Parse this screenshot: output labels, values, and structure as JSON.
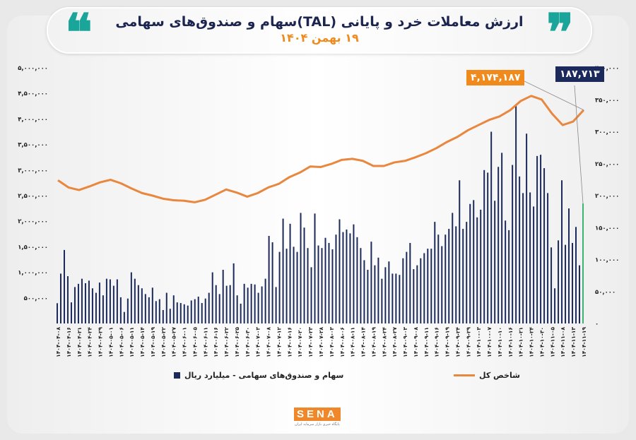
{
  "header": {
    "title": "ارزش معاملات خرد و پایانی (TAL)سهام و صندوق‌های سهامی",
    "subtitle": "۱۹ بهمن ۱۴۰۴",
    "quote_open": "❝",
    "quote_close": "❞"
  },
  "logo": {
    "word": "SENA",
    "tagline": "پایگاه خبری بازار سرمایه ایران"
  },
  "colors": {
    "bars": "#1b2a5a",
    "last_bar": "#3cb371",
    "index_line": "#e8873d",
    "accent": "#1aa59a",
    "title": "#1b2550",
    "subtitle": "#f08a1c"
  },
  "callouts": {
    "index_last": "۴,۱۷۴,۱۸۷",
    "bar_last": "۱۸۷,۷۱۳"
  },
  "chart_data": {
    "type": "bar+line",
    "title": "ارزش معاملات خرد و پایانی (TAL)سهام و صندوق‌های سهامی",
    "legend": [
      {
        "name": "سهام و صندوق‌های سهامی - میلیارد ریال",
        "type": "bar",
        "axis": "right"
      },
      {
        "name": "شاخص کل",
        "type": "line",
        "axis": "left"
      }
    ],
    "legend_placement": "bottom",
    "grid": false,
    "left_axis": {
      "range": [
        0,
        5000000
      ],
      "ticks": [
        "۵۰۰,۰۰۰",
        "۱,۰۰۰,۰۰۰",
        "۱,۵۰۰,۰۰۰",
        "۲,۰۰۰,۰۰۰",
        "۲,۵۰۰,۰۰۰",
        "۳,۰۰۰,۰۰۰",
        "۳,۵۰۰,۰۰۰",
        "۴,۰۰۰,۰۰۰",
        "۴,۵۰۰,۰۰۰",
        "۵,۰۰۰,۰۰۰"
      ],
      "tick_values": [
        500000,
        1000000,
        1500000,
        2000000,
        2500000,
        3000000,
        3500000,
        4000000,
        4500000,
        5000000
      ]
    },
    "right_axis": {
      "range": [
        0,
        400000
      ],
      "ticks": [
        "۰",
        "۵۰,۰۰۰",
        "۱۰۰,۰۰۰",
        "۱۵۰,۰۰۰",
        "۲۰۰,۰۰۰",
        "۲۵۰,۰۰۰",
        "۳۰۰,۰۰۰",
        "۳۵۰,۰۰۰",
        "۴۰۰,۰۰۰"
      ],
      "tick_values": [
        0,
        50000,
        100000,
        150000,
        200000,
        250000,
        300000,
        350000,
        400000
      ]
    },
    "x_tick_labels": [
      "۱۴۰۴-۰۴-۰۸",
      "۱۴۰۴-۰۴-۱۶",
      "۱۴۰۴-۰۴-۲۱",
      "۱۴۰۴-۰۴-۲۴",
      "۱۴۰۴-۰۴-۲۹",
      "۱۴۰۴-۰۵-۰۱",
      "۱۴۰۴-۰۵-۰۶",
      "۱۴۰۴-۰۵-۱۱",
      "۱۴۰۴-۰۵-۱۴",
      "۱۴۰۴-۰۵-۱۹",
      "۱۴۰۴-۰۵-۲۲",
      "۱۴۰۴-۰۵-۲۷",
      "۱۴۰۴-۰۶-۰۱",
      "۱۴۰۴-۰۶-۰۵",
      "۱۴۰۴-۰۶-۱۱",
      "۱۴۰۴-۰۶-۱۶",
      "۱۴۰۴-۰۶-۲۲",
      "۱۴۰۴-۰۶-۲۵",
      "۱۴۰۴-۰۶-۳۰",
      "۱۴۰۴-۰۷-۰۳",
      "۱۴۰۴-۰۷-۰۸",
      "۱۴۰۴-۰۷-۱۲",
      "۱۴۰۴-۰۷-۱۶",
      "۱۴۰۴-۰۷-۲۰",
      "۱۴۰۴-۰۷-۲۳",
      "۱۴۰۴-۰۷-۲۸",
      "۱۴۰۴-۰۸-۰۳",
      "۱۴۰۴-۰۸-۰۶",
      "۱۴۰۴-۰۸-۱۱",
      "۱۴۰۴-۰۸-۱۴",
      "۱۴۰۴-۰۸-۱۹",
      "۱۴۰۴-۰۸-۲۴",
      "۱۴۰۴-۰۸-۲۷",
      "۱۴۰۴-۰۹-۰۳",
      "۱۴۰۴-۰۹-۰۸",
      "۱۴۰۴-۰۹-۱۱",
      "۱۴۰۴-۰۹-۱۶",
      "۱۴۰۴-۰۹-۱۹",
      "۱۴۰۴-۰۹-۲۴",
      "۱۴۰۴-۰۹-۲۹",
      "۱۴۰۴-۱۰-۰۳",
      "۱۴۰۴-۱۰-۰۷",
      "۱۴۰۴-۱۰-۱۰",
      "۱۴۰۴-۱۰-۱۶",
      "۱۴۰۴-۱۰-۲۱",
      "۱۴۰۴-۱۰-۲۴",
      "۱۴۰۴-۱۰-۳۰",
      "۱۴۰۴-۱۱-۰۵",
      "۱۴۰۴-۱۱-۰۸",
      "۱۴۰۴-۱۱-۱۳",
      "۱۴۰۴-۱۱-۱۹"
    ],
    "index_values": [
      2800000,
      2660000,
      2610000,
      2680000,
      2760000,
      2810000,
      2740000,
      2640000,
      2550000,
      2500000,
      2440000,
      2410000,
      2400000,
      2370000,
      2420000,
      2520000,
      2620000,
      2560000,
      2480000,
      2550000,
      2660000,
      2730000,
      2860000,
      2950000,
      3070000,
      3060000,
      3120000,
      3200000,
      3220000,
      3180000,
      3080000,
      3080000,
      3150000,
      3180000,
      3250000,
      3330000,
      3430000,
      3550000,
      3650000,
      3780000,
      3880000,
      3980000,
      4050000,
      4170000,
      4350000,
      4450000,
      4380000,
      4100000,
      3880000,
      3950000,
      4174187
    ],
    "bar_values": [
      31700,
      78000,
      115000,
      74000,
      33000,
      57000,
      62000,
      70000,
      63000,
      67000,
      55000,
      48000,
      64000,
      44000,
      70000,
      69000,
      59000,
      69000,
      41000,
      18000,
      39000,
      80000,
      70000,
      60000,
      55000,
      46000,
      41000,
      56000,
      35000,
      38000,
      21000,
      48000,
      23000,
      44000,
      33000,
      32000,
      30000,
      28000,
      36000,
      38000,
      42000,
      32000,
      39000,
      48000,
      80000,
      60000,
      46000,
      84000,
      59000,
      60000,
      94000,
      44000,
      31000,
      62000,
      56000,
      62000,
      61000,
      48000,
      58000,
      70000,
      137000,
      127000,
      57000,
      112000,
      164000,
      117000,
      156000,
      120000,
      112000,
      173000,
      150000,
      118000,
      88000,
      172000,
      122000,
      118000,
      134000,
      126000,
      116000,
      139000,
      163000,
      143000,
      147000,
      141000,
      155000,
      135000,
      118000,
      99000,
      84000,
      128000,
      91000,
      103000,
      70000,
      88000,
      97000,
      78000,
      78000,
      76000,
      102000,
      112000,
      126000,
      85000,
      91000,
      102000,
      110000,
      117000,
      117000,
      159000,
      139000,
      121000,
      139000,
      148000,
      173000,
      152000,
      224000,
      148000,
      159000,
      187000,
      193000,
      166000,
      178000,
      240000,
      236000,
      300000,
      192000,
      245000,
      267000,
      161000,
      146000,
      248000,
      342000,
      230000,
      204000,
      297000,
      205000,
      183000,
      262000,
      264000,
      243000,
      204000,
      119000,
      55000,
      130000,
      224000,
      123000,
      180000,
      126000,
      151000,
      91000,
      187713
    ]
  }
}
